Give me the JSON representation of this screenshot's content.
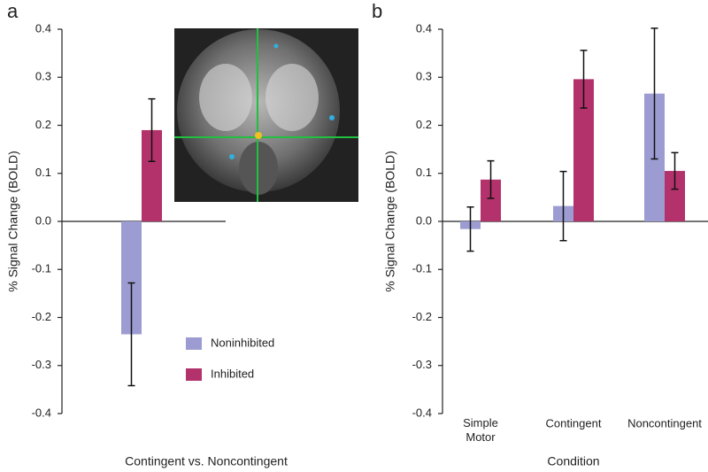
{
  "chart_data": [
    {
      "type": "bar",
      "panel_label": "a",
      "xlabel": "Contingent vs. Noncontingent",
      "ylabel": "% Signal Change (BOLD)",
      "categories": [
        null
      ],
      "series": [
        {
          "name": "Noninhibited",
          "color": "#9c9cd2",
          "values": [
            -0.235
          ],
          "errors": [
            0.107
          ]
        },
        {
          "name": "Inhibited",
          "color": "#b3326b",
          "values": [
            0.19
          ],
          "errors": [
            0.065
          ]
        }
      ],
      "ylim": [
        -0.4,
        0.4
      ],
      "yticks": [
        0.4,
        0.3,
        0.2,
        0.1,
        {
          "value": 0,
          "label": "0.0"
        },
        -0.1,
        -0.2,
        -0.3,
        -0.4
      ],
      "legend": true
    },
    {
      "type": "bar",
      "panel_label": "b",
      "xlabel": "Condition",
      "ylabel": "% Signal Change (BOLD)",
      "categories": [
        "Simple Motor",
        "Contingent",
        "Noncontingent"
      ],
      "series": [
        {
          "name": "Noninhibited",
          "color": "#9c9cd2",
          "values": [
            -0.016,
            0.032,
            0.266
          ],
          "errors": [
            0.046,
            0.072,
            0.136
          ]
        },
        {
          "name": "Inhibited",
          "color": "#b3326b",
          "values": [
            0.087,
            0.296,
            0.105
          ],
          "errors": [
            0.039,
            0.06,
            0.038
          ]
        }
      ],
      "ylim": [
        -0.4,
        0.4
      ],
      "yticks": [
        0.4,
        0.3,
        0.2,
        0.1,
        {
          "value": 0,
          "label": "0.0"
        },
        -0.1,
        -0.2,
        -0.3,
        -0.4
      ],
      "legend": false
    }
  ]
}
